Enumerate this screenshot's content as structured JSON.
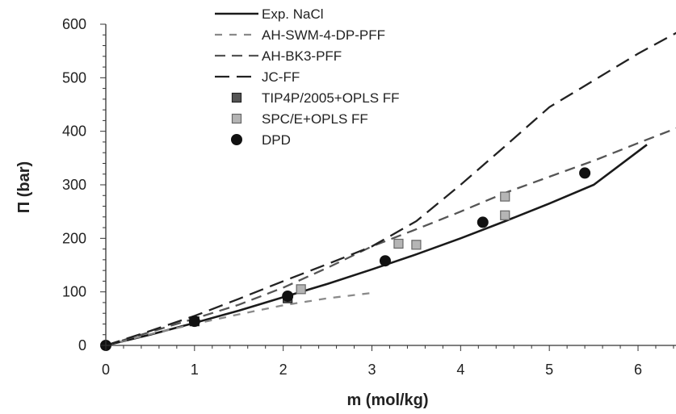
{
  "chart_data": {
    "type": "line",
    "xlabel": "m (mol/kg)",
    "ylabel": "Π (bar)",
    "xlim": [
      0,
      6.5
    ],
    "ylim": [
      0,
      600
    ],
    "xticks": [
      0,
      1,
      2,
      3,
      4,
      5,
      6
    ],
    "yticks": [
      0,
      100,
      200,
      300,
      400,
      500,
      600
    ],
    "grid": false,
    "legend_position": "top-left",
    "series": [
      {
        "name": "Exp. NaCl",
        "kind": "line",
        "dash": "solid",
        "color": "#1a1a1a",
        "x": [
          0,
          0.5,
          1.0,
          1.5,
          2.0,
          2.5,
          3.0,
          3.5,
          4.0,
          4.5,
          5.0,
          5.5,
          6.1
        ],
        "y": [
          0,
          20,
          42,
          65,
          90,
          115,
          142,
          170,
          200,
          232,
          265,
          300,
          375
        ]
      },
      {
        "name": "AH-SWM-4-DP-PFF",
        "kind": "line",
        "dash": "short",
        "color": "#8a8a8a",
        "x": [
          0,
          0.5,
          1.0,
          1.5,
          2.0,
          2.5,
          3.0
        ],
        "y": [
          0,
          21,
          40,
          58,
          75,
          88,
          98
        ]
      },
      {
        "name": "AH-BK3-PFF",
        "kind": "line",
        "dash": "medium",
        "color": "#555555",
        "x": [
          0,
          0.5,
          1.0,
          1.5,
          2.0,
          2.5,
          3.0,
          3.5,
          4.0,
          4.5,
          5.0,
          5.5,
          6.0,
          6.5
        ],
        "y": [
          0,
          25,
          50,
          76,
          108,
          145,
          185,
          217,
          250,
          285,
          315,
          345,
          378,
          410
        ]
      },
      {
        "name": "JC-FF",
        "kind": "line",
        "dash": "long",
        "color": "#222222",
        "x": [
          0,
          0.5,
          1.0,
          1.5,
          2.0,
          2.5,
          3.0,
          3.5,
          4.0,
          4.5,
          5.0,
          5.5,
          6.0,
          6.5
        ],
        "y": [
          0,
          27,
          55,
          87,
          120,
          152,
          185,
          232,
          300,
          372,
          445,
          495,
          545,
          590
        ]
      },
      {
        "name": "TIP4P/2005+OPLS FF",
        "kind": "marker",
        "marker": "square-dark",
        "color": "#555555",
        "x": [
          1.0,
          2.05
        ],
        "y": [
          45,
          88
        ]
      },
      {
        "name": "SPC/E+OPLS FF",
        "kind": "marker",
        "marker": "square-light",
        "color": "#b5b5b5",
        "x": [
          2.2,
          3.3,
          3.5,
          4.5,
          4.5
        ],
        "y": [
          105,
          190,
          188,
          278,
          243
        ]
      },
      {
        "name": "DPD",
        "kind": "marker",
        "marker": "circle",
        "color": "#111111",
        "x": [
          0,
          1.0,
          2.05,
          3.15,
          4.25,
          5.4
        ],
        "y": [
          0,
          45,
          92,
          158,
          230,
          322
        ]
      }
    ]
  }
}
